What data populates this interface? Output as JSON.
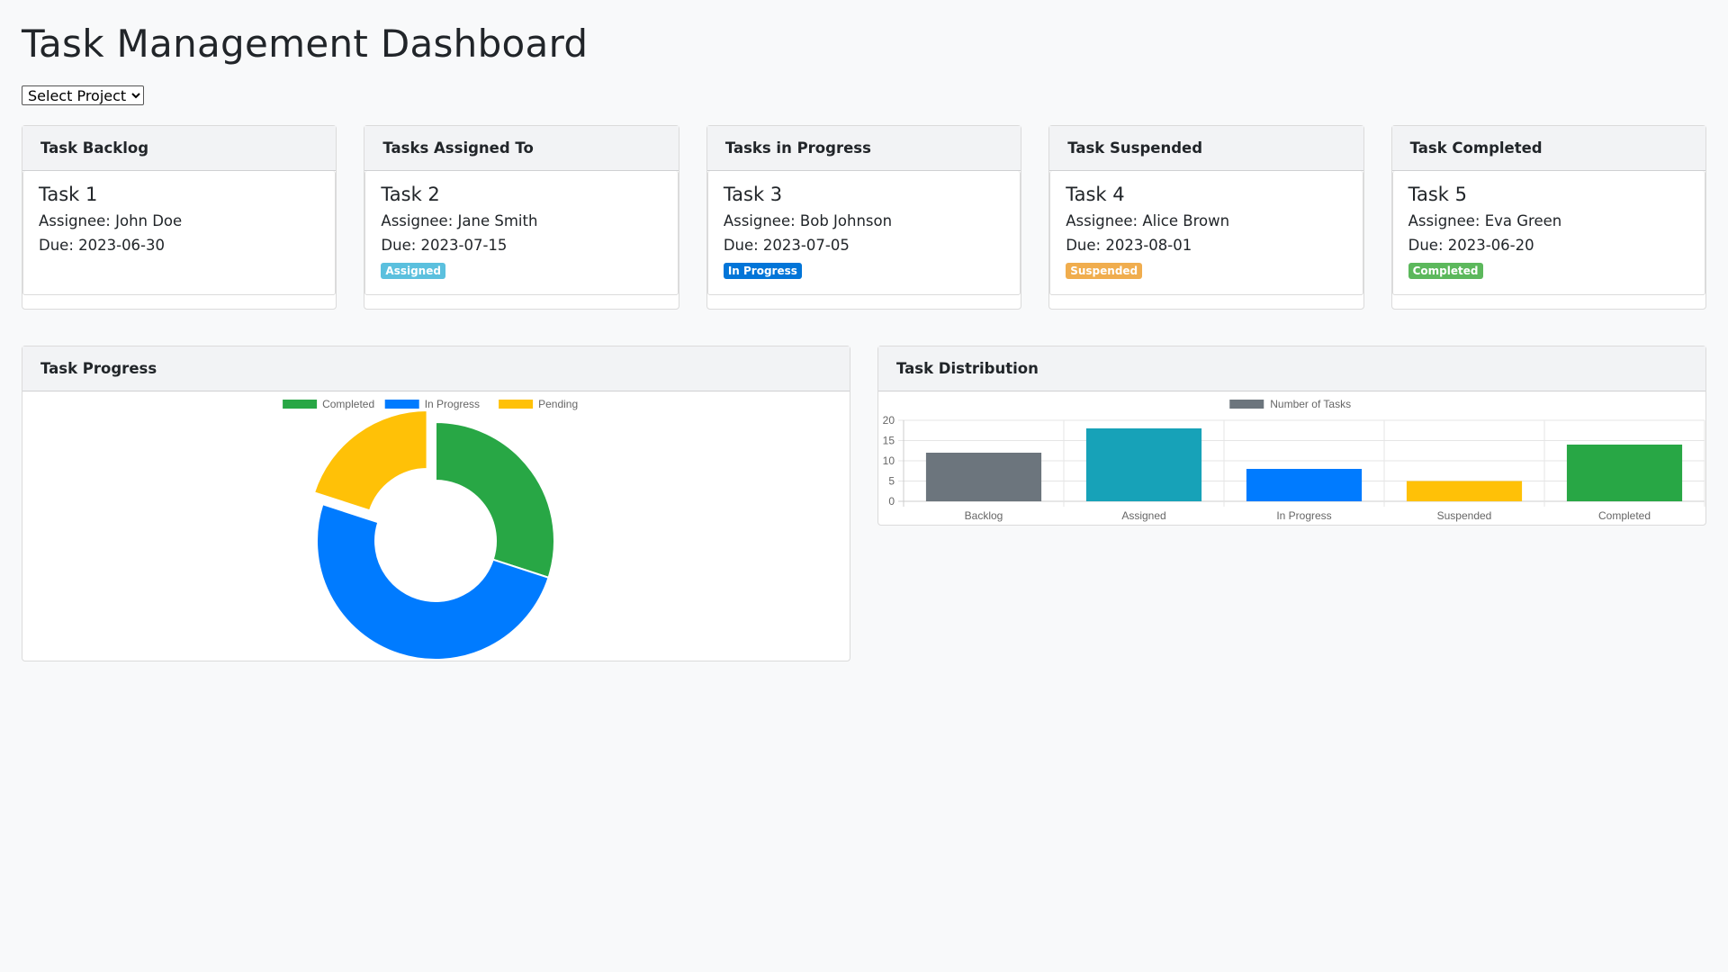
{
  "page": {
    "title": "Task Management Dashboard",
    "project_select": {
      "selected": "Select Project"
    }
  },
  "columns": [
    {
      "header": "Task Backlog",
      "task": {
        "title": "Task 1",
        "assignee": "Assignee: John Doe",
        "due": "Due: 2023-06-30",
        "badge": "",
        "badge_color": ""
      }
    },
    {
      "header": "Tasks Assigned To",
      "task": {
        "title": "Task 2",
        "assignee": "Assignee: Jane Smith",
        "due": "Due: 2023-07-15",
        "badge": "Assigned",
        "badge_color": "#5bc0de"
      }
    },
    {
      "header": "Tasks in Progress",
      "task": {
        "title": "Task 3",
        "assignee": "Assignee: Bob Johnson",
        "due": "Due: 2023-07-05",
        "badge": "In Progress",
        "badge_color": "#0275d8"
      }
    },
    {
      "header": "Task Suspended",
      "task": {
        "title": "Task 4",
        "assignee": "Assignee: Alice Brown",
        "due": "Due: 2023-08-01",
        "badge": "Suspended",
        "badge_color": "#f0ad4e"
      }
    },
    {
      "header": "Task Completed",
      "task": {
        "title": "Task 5",
        "assignee": "Assignee: Eva Green",
        "due": "Due: 2023-06-20",
        "badge": "Completed",
        "badge_color": "#5cb85c"
      }
    }
  ],
  "panels": {
    "progress_title": "Task Progress",
    "distribution_title": "Task Distribution"
  },
  "chart_data": [
    {
      "type": "pie",
      "variant": "doughnut",
      "legend_position": "top",
      "categories": [
        "Completed",
        "In Progress",
        "Pending"
      ],
      "values": [
        30,
        50,
        20
      ],
      "colors": [
        "#28a745",
        "#007bff",
        "#ffc107"
      ],
      "exploded": "Pending"
    },
    {
      "type": "bar",
      "legend_position": "top",
      "categories": [
        "Backlog",
        "Assigned",
        "In Progress",
        "Suspended",
        "Completed"
      ],
      "series": [
        {
          "name": "Number of Tasks",
          "values": [
            12,
            18,
            8,
            5,
            14
          ]
        }
      ],
      "colors": [
        "#6c757d",
        "#17a2b8",
        "#007bff",
        "#ffc107",
        "#28a745"
      ],
      "legend_color": "#6c757d",
      "ylim": [
        0,
        20
      ],
      "yticks": [
        0,
        5,
        10,
        15,
        20
      ],
      "grid": true
    }
  ]
}
